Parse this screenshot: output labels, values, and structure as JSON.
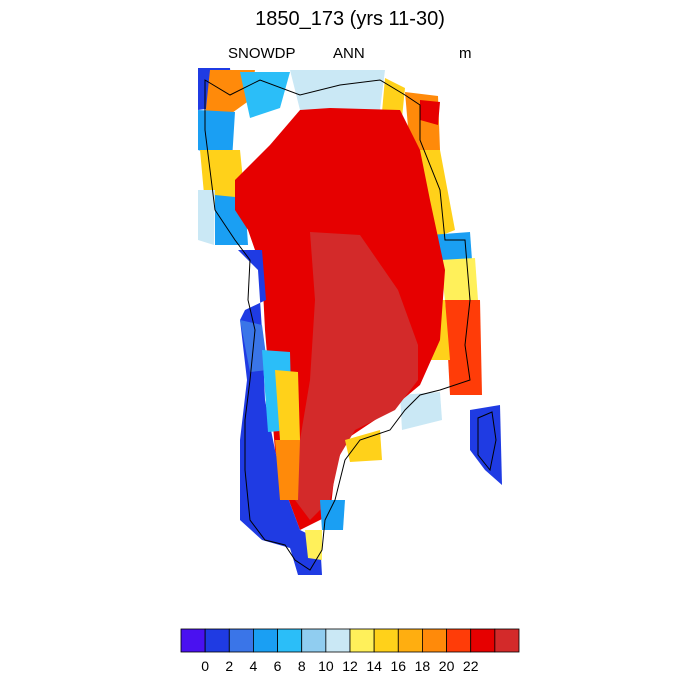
{
  "title": "1850_173 (yrs 11-30)",
  "subtitle": {
    "left": "SNOWDP",
    "center": "ANN",
    "right": "m"
  },
  "colorbar": {
    "colors": [
      "#4a11f0",
      "#1f3be3",
      "#3a75e8",
      "#1a9ff3",
      "#2bbef8",
      "#90cdf0",
      "#cae8f5",
      "#fff05a",
      "#ffd11a",
      "#ffae10",
      "#ff8a0a",
      "#ff3c08",
      "#e60000",
      "#d32a2a"
    ],
    "tick_labels": [
      "0",
      "2",
      "4",
      "6",
      "8",
      "10",
      "12",
      "14",
      "16",
      "18",
      "20",
      "22"
    ]
  }
}
